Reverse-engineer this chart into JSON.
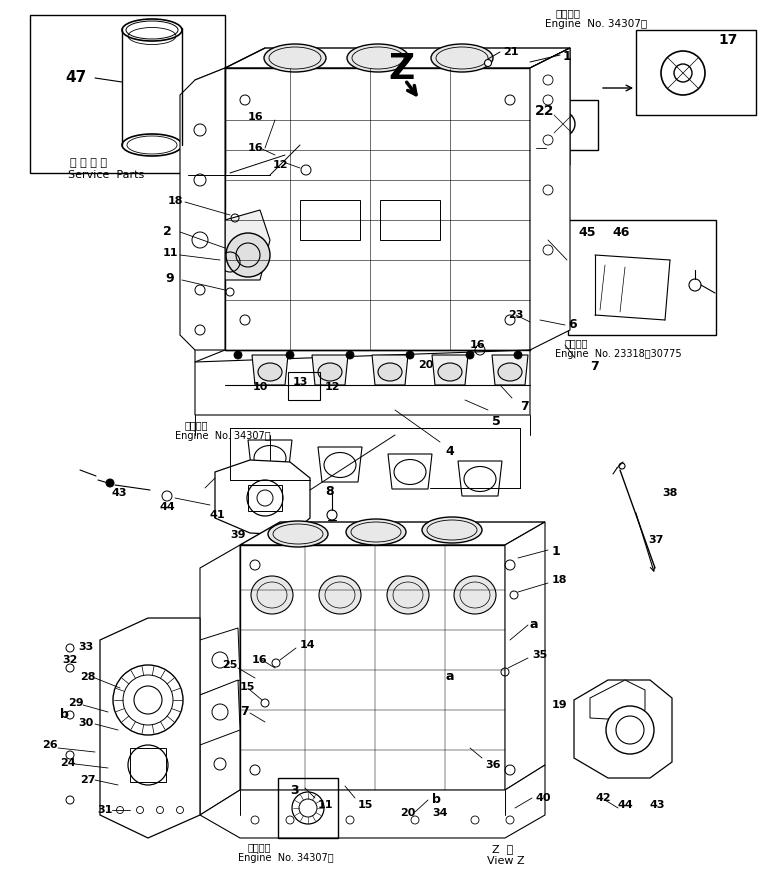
{
  "bg_color": "#ffffff",
  "figsize": [
    7.69,
    8.72
  ],
  "dpi": 100,
  "top_right_text1": "適用号機",
  "top_right_text2": "Engine  No. 34307～",
  "engine_text_23318": "適用号機",
  "engine_text_23318b": "Engine  No. 23318～30775",
  "engine_text_34307a": "適用号機",
  "engine_text_34307b": "Engine  No. 34307～",
  "engine_text_34307c": "適用号機",
  "engine_text_34307d": "Engine  No. 34307～",
  "service_parts_jp": "補 給 専 用",
  "service_parts_en": "Service  Parts",
  "z_label": "Z",
  "z_view1": "Z  視",
  "z_view2": "View Z"
}
